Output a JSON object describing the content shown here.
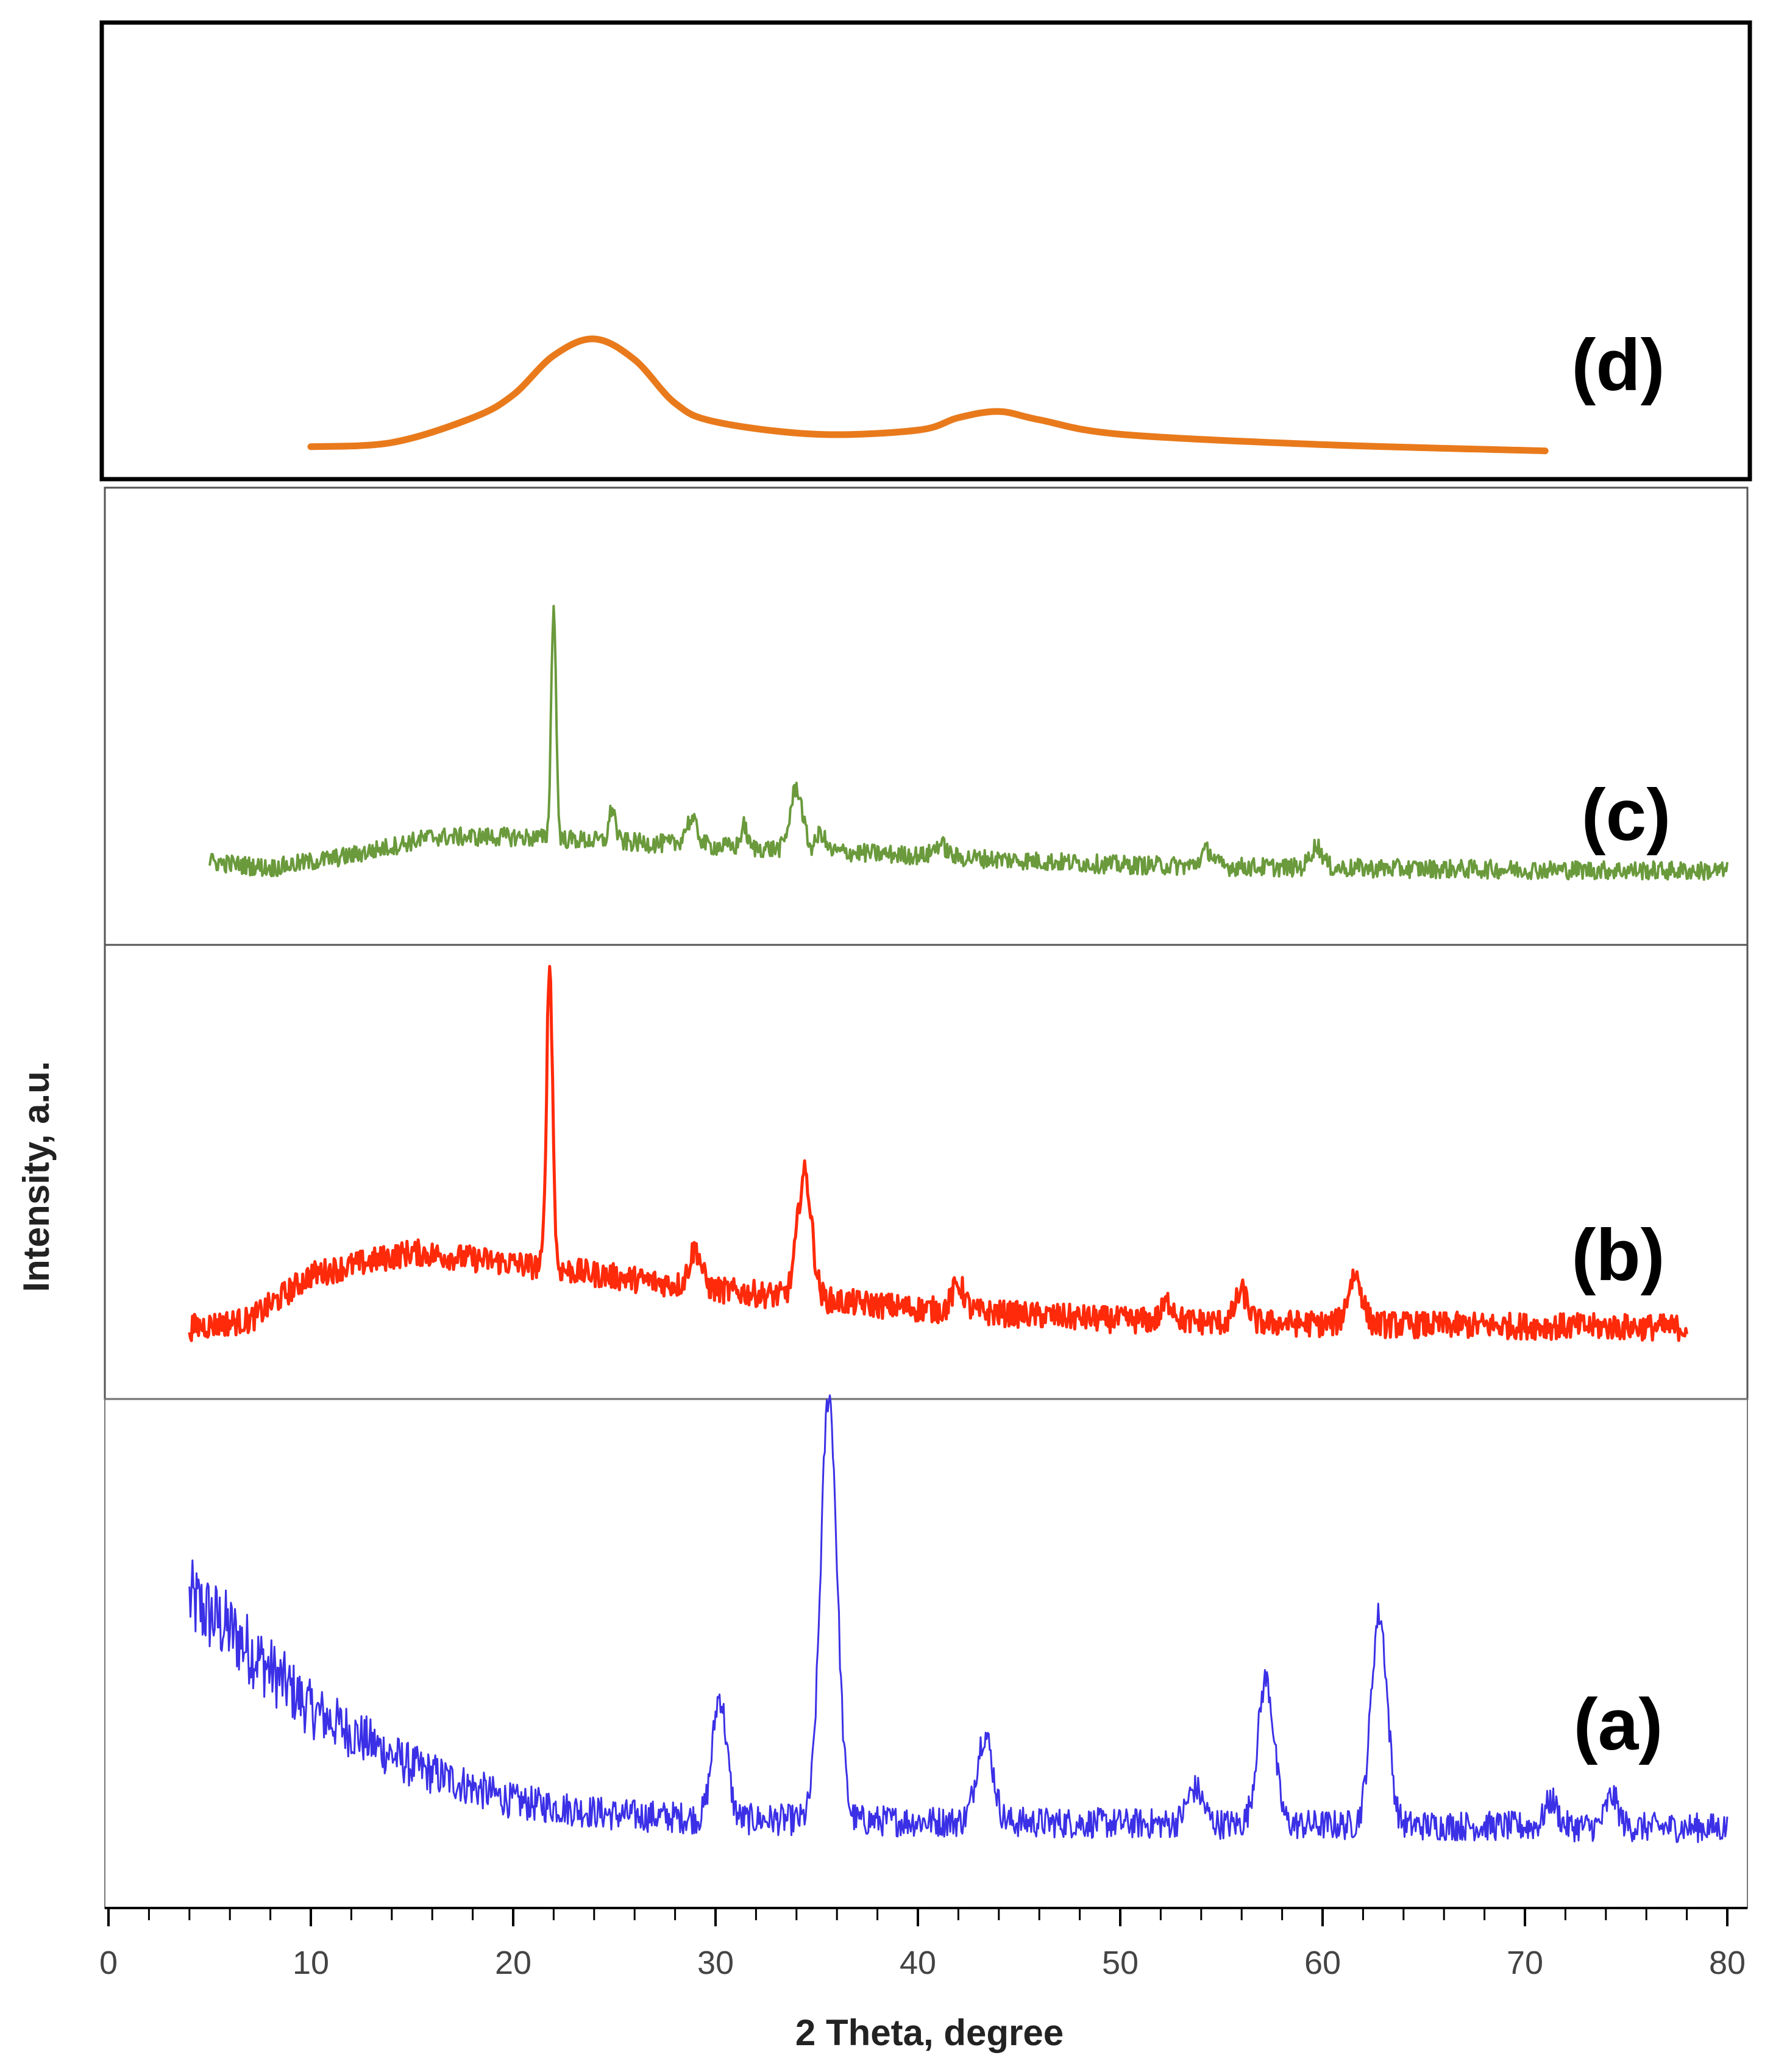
{
  "chart_data": {
    "type": "line",
    "title": "",
    "xlabel": "2 Theta, degree",
    "ylabel": "Intensity, a.u.",
    "xlim": [
      0,
      80
    ],
    "xticks": [
      "0",
      "10",
      "20",
      "30",
      "40",
      "50",
      "60",
      "70",
      "80"
    ],
    "grid": false,
    "series": [
      {
        "name": "(a)",
        "color": "#3b30e6",
        "noise": 0.06,
        "x_range": [
          4,
          80
        ],
        "baseline": [
          [
            4,
            0.55
          ],
          [
            6,
            0.48
          ],
          [
            10,
            0.3
          ],
          [
            15,
            0.17
          ],
          [
            20,
            0.09
          ],
          [
            25,
            0.06
          ],
          [
            30,
            0.05
          ],
          [
            50,
            0.04
          ],
          [
            80,
            0.03
          ]
        ],
        "peaks": [
          [
            30.2,
            0.28,
            0.35
          ],
          [
            35.6,
            0.97,
            0.4
          ],
          [
            43.3,
            0.2,
            0.4
          ],
          [
            53.7,
            0.08,
            0.4
          ],
          [
            57.2,
            0.33,
            0.4
          ],
          [
            62.8,
            0.48,
            0.4
          ],
          [
            71.3,
            0.06,
            0.3
          ],
          [
            74.3,
            0.07,
            0.3
          ]
        ]
      },
      {
        "name": "(b)",
        "color": "#ff2a0a",
        "noise": 0.035,
        "x_range": [
          4,
          78
        ],
        "baseline": [
          [
            4,
            0.1
          ],
          [
            7,
            0.12
          ],
          [
            10,
            0.24
          ],
          [
            15,
            0.3
          ],
          [
            20,
            0.27
          ],
          [
            30,
            0.2
          ],
          [
            40,
            0.15
          ],
          [
            50,
            0.12
          ],
          [
            60,
            0.11
          ],
          [
            78,
            0.1
          ]
        ],
        "peaks": [
          [
            21.8,
            0.8,
            0.15
          ],
          [
            29.0,
            0.1,
            0.3
          ],
          [
            34.4,
            0.33,
            0.35
          ],
          [
            42.0,
            0.07,
            0.3
          ],
          [
            52.4,
            0.05,
            0.3
          ],
          [
            56.0,
            0.08,
            0.3
          ],
          [
            61.6,
            0.13,
            0.35
          ]
        ]
      },
      {
        "name": "(c)",
        "color": "#6a9a3c",
        "noise": 0.03,
        "x_range": [
          5,
          80
        ],
        "baseline": [
          [
            5,
            0.13
          ],
          [
            8,
            0.11
          ],
          [
            12,
            0.15
          ],
          [
            16,
            0.21
          ],
          [
            20,
            0.21
          ],
          [
            30,
            0.18
          ],
          [
            40,
            0.15
          ],
          [
            50,
            0.12
          ],
          [
            60,
            0.11
          ],
          [
            80,
            0.1
          ]
        ],
        "peaks": [
          [
            22.0,
            0.75,
            0.12
          ],
          [
            24.9,
            0.11,
            0.15
          ],
          [
            28.8,
            0.08,
            0.3
          ],
          [
            31.4,
            0.07,
            0.15
          ],
          [
            34.0,
            0.2,
            0.3
          ],
          [
            35.2,
            0.06,
            0.2
          ],
          [
            41.1,
            0.04,
            0.3
          ],
          [
            54.3,
            0.05,
            0.3
          ],
          [
            59.7,
            0.07,
            0.3
          ]
        ]
      },
      {
        "name": "(d)",
        "color": "#e97a1c",
        "noise": 0,
        "x": [
          10,
          14,
          18,
          20,
          22,
          24,
          26,
          28,
          30,
          35,
          40,
          42,
          44,
          46,
          50,
          60,
          71
        ],
        "y": [
          0.08,
          0.1,
          0.22,
          0.33,
          0.52,
          0.6,
          0.5,
          0.29,
          0.2,
          0.14,
          0.16,
          0.22,
          0.25,
          0.21,
          0.14,
          0.09,
          0.06
        ]
      }
    ]
  }
}
